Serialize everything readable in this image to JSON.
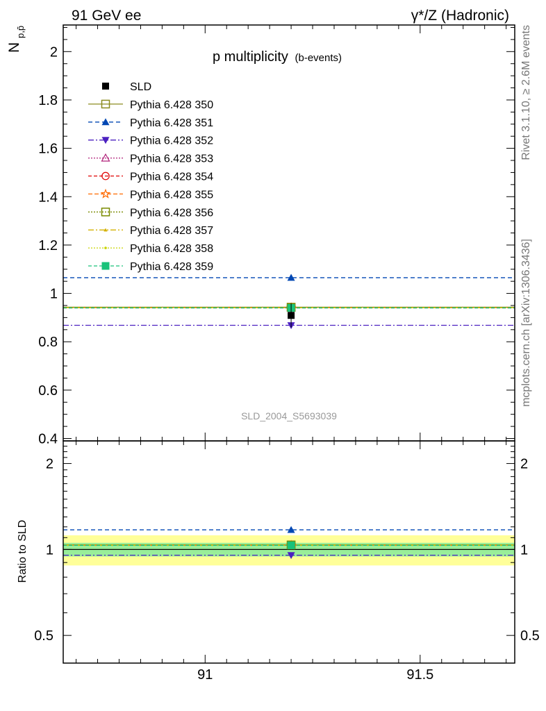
{
  "header": {
    "left": "91 GeV ee",
    "right": "γ*/Z (Hadronic)"
  },
  "side_labels": {
    "rivet": "Rivet 3.1.10, ≥ 2.6M events",
    "mcplots": "mcplots.cern.ch [arXiv:1306.3436]"
  },
  "chart_data": {
    "type": "scatter",
    "title": "p multiplicity",
    "title_sub": "(b-events)",
    "ylabel_main": "N",
    "ylabel_sub": "p,p̄",
    "ylabel_ratio": "Ratio to SLD",
    "analysis_id": "SLD_2004_S5693039",
    "xlim": [
      90.67,
      91.72
    ],
    "ylim": [
      0.39,
      2.11
    ],
    "ratio_ylim": [
      0.4,
      2.4
    ],
    "ratio_scale": "log",
    "x_ticks": [
      91,
      91.5
    ],
    "x_tick_labels": [
      "91",
      "91.5"
    ],
    "y_ticks": [
      0.4,
      0.6,
      0.8,
      1,
      1.2,
      1.4,
      1.6,
      1.8,
      2
    ],
    "y_tick_labels": [
      "0.4",
      "0.6",
      "0.8",
      "1",
      "1.2",
      "1.4",
      "1.6",
      "1.8",
      "2"
    ],
    "ratio_ticks": [
      0.5,
      1,
      2
    ],
    "ratio_tick_labels": [
      "0.5",
      "1",
      "2"
    ],
    "x_point": 91.2,
    "data": {
      "name": "SLD",
      "value": 0.909,
      "error": 0.05,
      "band_inner": 0.05,
      "band_outer": 0.11
    },
    "legend_position": "top-left",
    "series": [
      {
        "name": "Pythia 6.428 350",
        "value": 0.943,
        "color": "#8b8b1e",
        "marker": "square-open",
        "dash": "solid"
      },
      {
        "name": "Pythia 6.428 351",
        "value": 1.065,
        "color": "#0047b3",
        "marker": "triangle-up",
        "dash": "6,4"
      },
      {
        "name": "Pythia 6.428 352",
        "value": 0.868,
        "color": "#4b20c0",
        "marker": "triangle-down",
        "dash": "8,3,2,3"
      },
      {
        "name": "Pythia 6.428 353",
        "value": 0.941,
        "color": "#b0217a",
        "marker": "triangle-open",
        "dash": "2,2"
      },
      {
        "name": "Pythia 6.428 354",
        "value": 0.94,
        "color": "#e00000",
        "marker": "circle-open",
        "dash": "5,3"
      },
      {
        "name": "Pythia 6.428 355",
        "value": 0.941,
        "color": "#ff6a00",
        "marker": "star-open",
        "dash": "6,3"
      },
      {
        "name": "Pythia 6.428 356",
        "value": 0.942,
        "color": "#7a8a00",
        "marker": "square-open",
        "dash": "2,2"
      },
      {
        "name": "Pythia 6.428 357",
        "value": 0.941,
        "color": "#d4b000",
        "marker": "tri-small",
        "dash": "8,3,2,3"
      },
      {
        "name": "Pythia 6.428 358",
        "value": 0.941,
        "color": "#c8d400",
        "marker": "dot",
        "dash": "2,2"
      },
      {
        "name": "Pythia 6.428 359",
        "value": 0.94,
        "color": "#19c27a",
        "marker": "square",
        "dash": "5,3"
      }
    ]
  }
}
